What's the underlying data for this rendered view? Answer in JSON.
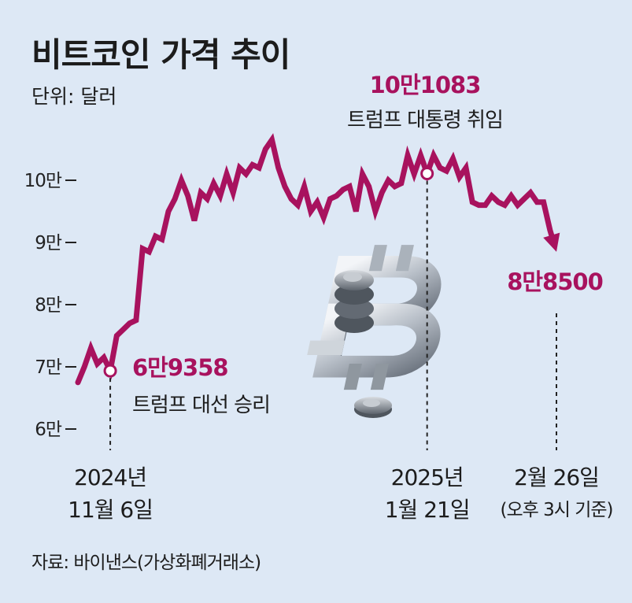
{
  "chart_data": {
    "type": "line",
    "title": "비트코인 가격 추이",
    "unit_label": "단위: 달러",
    "ylim": [
      60000,
      110000
    ],
    "y_ticks": [
      {
        "value": 100000,
        "label": "10만"
      },
      {
        "value": 90000,
        "label": "9만"
      },
      {
        "value": 80000,
        "label": "8만"
      },
      {
        "value": 70000,
        "label": "7만"
      },
      {
        "value": 60000,
        "label": "6만"
      }
    ],
    "series": [
      {
        "color": "#a8125e",
        "values": [
          67500,
          70000,
          73000,
          70500,
          71500,
          69358,
          75000,
          76000,
          77000,
          77500,
          89000,
          88500,
          91000,
          90500,
          95000,
          97000,
          100000,
          97500,
          93500,
          98000,
          97000,
          99500,
          97500,
          101000,
          98000,
          102000,
          101000,
          102500,
          102000,
          105000,
          106500,
          102000,
          99000,
          97000,
          96000,
          99000,
          95000,
          96500,
          94000,
          97000,
          97500,
          98500,
          99000,
          95000,
          101000,
          99000,
          95000,
          98000,
          100000,
          99000,
          99500,
          104000,
          101000,
          104000,
          101083,
          104000,
          102000,
          101500,
          103500,
          100500,
          102000,
          96500,
          96000,
          96000,
          97500,
          96500,
          96000,
          97500,
          96000,
          97000,
          98000,
          96500,
          96500,
          92000,
          88500
        ]
      }
    ],
    "annotations": [
      {
        "point_index": 5,
        "value_label": "6만9358",
        "text": "트럼프 대선 승리",
        "date_line1": "2024년",
        "date_line2": "11월 6일"
      },
      {
        "point_index": 54,
        "value_label": "10만1083",
        "text": "트럼프 대통령 취임",
        "date_line1": "2025년",
        "date_line2": "1월 21일"
      },
      {
        "point_index": 74,
        "value_label": "8만8500",
        "date_line1": "2월 26일",
        "date_line2": "(오후 3시 기준)"
      }
    ],
    "source": "자료: 바이낸스(가상화폐거래소)"
  }
}
